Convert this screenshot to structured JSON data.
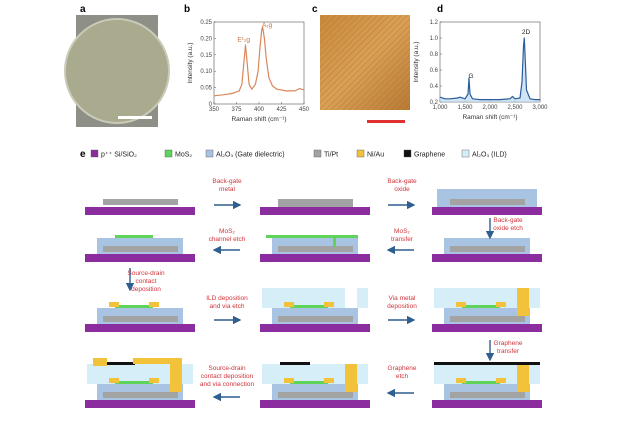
{
  "panels": {
    "a": {
      "label": "a"
    },
    "b": {
      "label": "b"
    },
    "c": {
      "label": "c"
    },
    "d": {
      "label": "d"
    },
    "e": {
      "label": "e"
    }
  },
  "chart_data": [
    {
      "panel": "b",
      "type": "line",
      "xlabel": "Raman shift (cm⁻¹)",
      "ylabel": "Intensity (a.u.)",
      "xlim": [
        350,
        450
      ],
      "ylim": [
        0,
        0.25
      ],
      "xticks": [
        "350",
        "375",
        "400",
        "425",
        "450"
      ],
      "yticks": [
        "0",
        "0.05",
        "0.10",
        "0.15",
        "0.20",
        "0.25"
      ],
      "color": "#d9875a",
      "annotations": [
        {
          "text": "E¹₂g",
          "x": 383,
          "y": 0.19
        },
        {
          "text": "A₁g",
          "x": 409,
          "y": 0.235
        }
      ],
      "x": [
        350,
        360,
        370,
        378,
        381,
        383,
        385,
        387,
        389,
        392,
        396,
        399,
        401,
        403,
        404,
        406,
        408,
        411,
        415,
        420,
        430,
        440,
        445,
        450
      ],
      "y": [
        0.025,
        0.028,
        0.032,
        0.04,
        0.06,
        0.12,
        0.18,
        0.12,
        0.06,
        0.045,
        0.06,
        0.1,
        0.17,
        0.225,
        0.235,
        0.2,
        0.14,
        0.08,
        0.055,
        0.045,
        0.04,
        0.04,
        0.047,
        0.043
      ]
    },
    {
      "panel": "d",
      "type": "line",
      "xlabel": "Raman shift (cm⁻¹)",
      "ylabel": "Intensity (a.u.)",
      "xlim": [
        1000,
        3000
      ],
      "ylim": [
        0.2,
        1.2
      ],
      "xticks": [
        "1,000",
        "1,500",
        "2,000",
        "2,500",
        "3,000"
      ],
      "yticks": [
        "0.2",
        "0.4",
        "0.6",
        "0.8",
        "1.0",
        "1.2"
      ],
      "color": "#2a5d9c",
      "annotations": [
        {
          "text": "G",
          "x": 1620,
          "y": 0.5
        },
        {
          "text": "2D",
          "x": 2720,
          "y": 1.05
        }
      ],
      "x": [
        1000,
        1100,
        1200,
        1350,
        1400,
        1500,
        1560,
        1580,
        1600,
        1650,
        1800,
        2000,
        2200,
        2400,
        2450,
        2500,
        2600,
        2640,
        2670,
        2685,
        2700,
        2730,
        2800,
        2900,
        3000
      ],
      "y": [
        0.26,
        0.24,
        0.24,
        0.25,
        0.26,
        0.24,
        0.3,
        0.5,
        0.3,
        0.24,
        0.23,
        0.23,
        0.23,
        0.24,
        0.27,
        0.24,
        0.25,
        0.45,
        0.9,
        1.0,
        0.8,
        0.35,
        0.24,
        0.23,
        0.23
      ]
    }
  ],
  "legend": [
    {
      "label": "p⁺⁺ Si/SiO₂",
      "color": "#8b2d9e"
    },
    {
      "label": "MoS₂",
      "color": "#5fd35a"
    },
    {
      "label": "Al₂O₃ (Gate dielectric)",
      "color": "#a9c3e3"
    },
    {
      "label": "Ti/Pt",
      "color": "#a3a3a3"
    },
    {
      "label": "Ni/Au",
      "color": "#f2c23a"
    },
    {
      "label": "Graphene",
      "color": "#111111"
    },
    {
      "label": "Al₂O₃ (ILD)",
      "color": "#d5eef7"
    }
  ],
  "steps": [
    {
      "lines": [
        "Back-gate",
        "metal"
      ]
    },
    {
      "lines": [
        "Back-gate",
        "oxide"
      ]
    },
    {
      "lines": [
        "Back-gate",
        "oxide etch"
      ]
    },
    {
      "lines": [
        "MoS₂",
        "transfer"
      ]
    },
    {
      "lines": [
        "MoS₂",
        "channel etch"
      ]
    },
    {
      "lines": [
        "Source-drain",
        "contact",
        "deposition"
      ]
    },
    {
      "lines": [
        "ILD deposition",
        "and via etch"
      ]
    },
    {
      "lines": [
        "Via metal",
        "deposition"
      ]
    },
    {
      "lines": [
        "Graphene",
        "transfer"
      ]
    },
    {
      "lines": [
        "Graphene",
        "etch"
      ]
    },
    {
      "lines": [
        "Source-drain",
        "contact deposition",
        "and via connection"
      ]
    }
  ],
  "arrow_color": "#2f5f8f",
  "label_color": "#d0343a"
}
